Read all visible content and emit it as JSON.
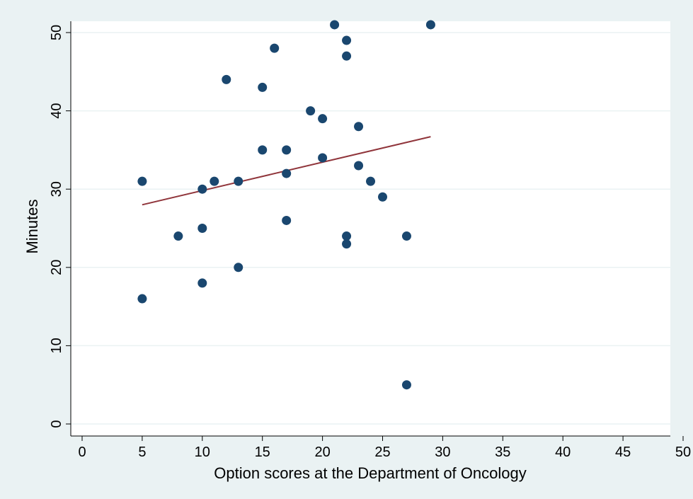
{
  "chart_data": {
    "type": "scatter",
    "title": "",
    "xlabel": "Option scores at the Department of Oncology",
    "ylabel": "Minutes",
    "xlim": [
      0,
      50
    ],
    "ylim": [
      0,
      50
    ],
    "xticks": [
      0,
      5,
      10,
      15,
      20,
      25,
      30,
      35,
      40,
      45,
      50
    ],
    "yticks": [
      0,
      10,
      20,
      30,
      40,
      50
    ],
    "grid": true,
    "legend": "none",
    "colors": {
      "outer_background": "#eaf2f3",
      "plot_background": "#ffffff",
      "gridline": "#eaf2f3",
      "marker": "#1a476f",
      "fit_line": "#90353b"
    },
    "series": [
      {
        "type": "scatter",
        "points": [
          {
            "x": 5,
            "y": 31
          },
          {
            "x": 5,
            "y": 16
          },
          {
            "x": 8,
            "y": 24
          },
          {
            "x": 10,
            "y": 30
          },
          {
            "x": 10,
            "y": 25
          },
          {
            "x": 10,
            "y": 18
          },
          {
            "x": 11,
            "y": 31
          },
          {
            "x": 12,
            "y": 44
          },
          {
            "x": 13,
            "y": 31
          },
          {
            "x": 13,
            "y": 20
          },
          {
            "x": 15,
            "y": 43
          },
          {
            "x": 15,
            "y": 35
          },
          {
            "x": 16,
            "y": 48
          },
          {
            "x": 17,
            "y": 35
          },
          {
            "x": 17,
            "y": 32
          },
          {
            "x": 17,
            "y": 26
          },
          {
            "x": 19,
            "y": 40
          },
          {
            "x": 20,
            "y": 39
          },
          {
            "x": 20,
            "y": 34
          },
          {
            "x": 21,
            "y": 51
          },
          {
            "x": 22,
            "y": 49
          },
          {
            "x": 22,
            "y": 47
          },
          {
            "x": 22,
            "y": 24
          },
          {
            "x": 22,
            "y": 23
          },
          {
            "x": 23,
            "y": 38
          },
          {
            "x": 23,
            "y": 33
          },
          {
            "x": 24,
            "y": 31
          },
          {
            "x": 25,
            "y": 29
          },
          {
            "x": 27,
            "y": 24
          },
          {
            "x": 27,
            "y": 5
          },
          {
            "x": 29,
            "y": 51
          }
        ]
      },
      {
        "type": "line",
        "points": [
          {
            "x": 5,
            "y": 28
          },
          {
            "x": 29,
            "y": 36.7
          }
        ]
      }
    ]
  }
}
